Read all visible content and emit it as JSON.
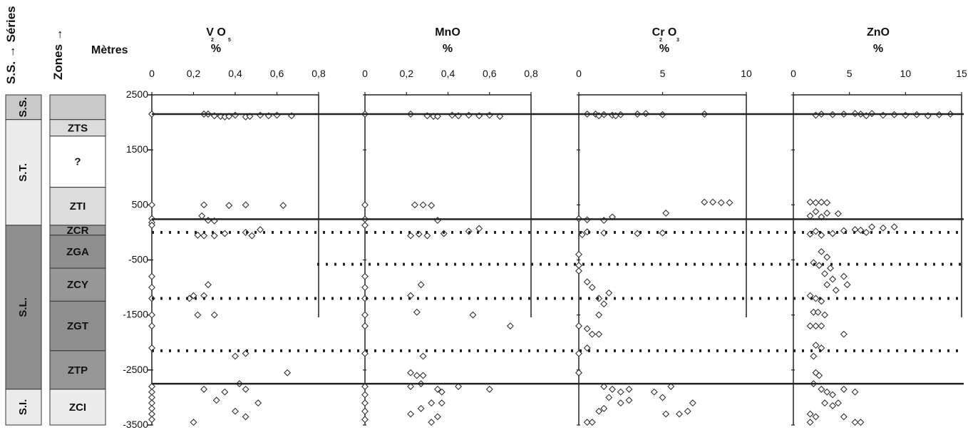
{
  "header": {
    "series_title": "S.S. → Séries",
    "zones_title": "Zones →",
    "metres_label": "Mètres"
  },
  "series_column": [
    {
      "label": "S.S.",
      "from": 2500,
      "to": 2050,
      "fill": "#c9c9c9"
    },
    {
      "label": "S.T.",
      "from": 2050,
      "to": 130,
      "fill": "#ececec"
    },
    {
      "label": "S.L.",
      "from": 130,
      "to": -2850,
      "fill": "#8f8f8f"
    },
    {
      "label": "S.I.",
      "from": -2850,
      "to": -3500,
      "fill": "#ececec"
    }
  ],
  "zones_column": [
    {
      "label": "",
      "from": 2500,
      "to": 2050,
      "fill": "#c9c9c9"
    },
    {
      "label": "ZTS",
      "from": 2050,
      "to": 1750,
      "fill": "#dcdcdc"
    },
    {
      "label": "?",
      "from": 1750,
      "to": 820,
      "fill": "#ffffff"
    },
    {
      "label": "ZTI",
      "from": 820,
      "to": 130,
      "fill": "#dcdcdc"
    },
    {
      "label": "ZCR",
      "from": 130,
      "to": -50,
      "fill": "#9a9a9a"
    },
    {
      "label": "ZGA",
      "from": -50,
      "to": -650,
      "fill": "#8f8f8f"
    },
    {
      "label": "ZCY",
      "from": -650,
      "to": -1250,
      "fill": "#979797"
    },
    {
      "label": "ZGT",
      "from": -1250,
      "to": -2150,
      "fill": "#8f8f8f"
    },
    {
      "label": "ZTP",
      "from": -2150,
      "to": -2850,
      "fill": "#979797"
    },
    {
      "label": "ZCI",
      "from": -2850,
      "to": -3500,
      "fill": "#ececec"
    }
  ],
  "colors": {
    "axis": "#222222",
    "marker": "#333333",
    "dotted": "#222222"
  },
  "chart_data": {
    "type": "scatter",
    "y_axis": {
      "label": "Mètres",
      "range": [
        -3500,
        2500
      ],
      "ticks": [
        2500,
        1500,
        500,
        -500,
        -1500,
        -2500,
        -3500
      ],
      "tick_labels": [
        "2500",
        "1500",
        "500",
        "-500",
        "-1500",
        "-2500",
        "-3500"
      ]
    },
    "horizontal_lines": {
      "solid": [
        2150,
        240,
        -2750
      ],
      "dotted": [
        0,
        -580,
        -1200,
        -2150
      ]
    },
    "panels": [
      {
        "title_main": "V O",
        "title_sub1": "2",
        "title_sub2": "5",
        "unit": "%",
        "xlim": [
          0,
          0.8
        ],
        "ticks": [
          0,
          0.2,
          0.4,
          0.6,
          0.8
        ],
        "tick_labels": [
          "0",
          "0,2",
          "0,4",
          "0,6",
          "0,8"
        ],
        "points": [
          [
            0,
            2150
          ],
          [
            0.25,
            2150
          ],
          [
            0.27,
            2150
          ],
          [
            0.3,
            2120
          ],
          [
            0.33,
            2110
          ],
          [
            0.35,
            2100
          ],
          [
            0.37,
            2110
          ],
          [
            0.4,
            2130
          ],
          [
            0.45,
            2100
          ],
          [
            0.47,
            2110
          ],
          [
            0.52,
            2130
          ],
          [
            0.56,
            2120
          ],
          [
            0.6,
            2130
          ],
          [
            0.67,
            2120
          ],
          [
            0,
            500
          ],
          [
            0.25,
            500
          ],
          [
            0.37,
            490
          ],
          [
            0.45,
            500
          ],
          [
            0.63,
            490
          ],
          [
            0.24,
            300
          ],
          [
            0.27,
            220
          ],
          [
            0.3,
            210
          ],
          [
            0,
            250
          ],
          [
            0,
            180
          ],
          [
            0,
            130
          ],
          [
            0.22,
            -50
          ],
          [
            0.25,
            -60
          ],
          [
            0.3,
            -60
          ],
          [
            0.35,
            -20
          ],
          [
            0.45,
            0
          ],
          [
            0.48,
            -60
          ],
          [
            0.52,
            50
          ],
          [
            0,
            -800
          ],
          [
            0,
            -1000
          ],
          [
            0,
            -1200
          ],
          [
            0.2,
            -1150
          ],
          [
            0.25,
            -1150
          ],
          [
            0.27,
            -950
          ],
          [
            0.18,
            -1200
          ],
          [
            0.22,
            -1500
          ],
          [
            0.3,
            -1500
          ],
          [
            0,
            -1500
          ],
          [
            0,
            -1700
          ],
          [
            0.4,
            -2250
          ],
          [
            0.45,
            -2200
          ],
          [
            0,
            -2100
          ],
          [
            0.65,
            -2550
          ],
          [
            0,
            -2800
          ],
          [
            0,
            -2900
          ],
          [
            0,
            -3000
          ],
          [
            0,
            -3100
          ],
          [
            0,
            -3200
          ],
          [
            0,
            -3300
          ],
          [
            0,
            -3400
          ],
          [
            0.25,
            -2850
          ],
          [
            0.35,
            -2900
          ],
          [
            0.42,
            -2750
          ],
          [
            0.45,
            -2850
          ],
          [
            0.31,
            -3050
          ],
          [
            0.4,
            -3250
          ],
          [
            0.45,
            -3350
          ],
          [
            0.51,
            -3100
          ],
          [
            0.2,
            -3450
          ]
        ]
      },
      {
        "title_main": "MnO",
        "title_sub1": "",
        "title_sub2": "",
        "unit": "%",
        "xlim": [
          0,
          0.8
        ],
        "ticks": [
          0,
          0.2,
          0.4,
          0.6,
          0.8
        ],
        "tick_labels": [
          "0",
          "0,2",
          "0,4",
          "0,6",
          "0,8"
        ],
        "points": [
          [
            0,
            2150
          ],
          [
            0.22,
            2150
          ],
          [
            0.3,
            2120
          ],
          [
            0.33,
            2110
          ],
          [
            0.35,
            2110
          ],
          [
            0.42,
            2130
          ],
          [
            0.45,
            2120
          ],
          [
            0.5,
            2130
          ],
          [
            0.55,
            2120
          ],
          [
            0.6,
            2130
          ],
          [
            0.65,
            2110
          ],
          [
            0,
            500
          ],
          [
            0.24,
            500
          ],
          [
            0.28,
            500
          ],
          [
            0.32,
            490
          ],
          [
            0,
            240
          ],
          [
            0,
            130
          ],
          [
            0.35,
            220
          ],
          [
            0.22,
            -60
          ],
          [
            0.26,
            -30
          ],
          [
            0.3,
            -60
          ],
          [
            0.38,
            -20
          ],
          [
            0.5,
            20
          ],
          [
            0.55,
            70
          ],
          [
            0,
            -800
          ],
          [
            0,
            -1000
          ],
          [
            0,
            -1200
          ],
          [
            0.22,
            -1150
          ],
          [
            0.27,
            -950
          ],
          [
            0.25,
            -1450
          ],
          [
            0.52,
            -1500
          ],
          [
            0,
            -1500
          ],
          [
            0,
            -1700
          ],
          [
            0.7,
            -1700
          ],
          [
            0,
            -2200
          ],
          [
            0.28,
            -2250
          ],
          [
            0.22,
            -2550
          ],
          [
            0.25,
            -2600
          ],
          [
            0.28,
            -2600
          ],
          [
            0.22,
            -2800
          ],
          [
            0.27,
            -2750
          ],
          [
            0.35,
            -2850
          ],
          [
            0.37,
            -2900
          ],
          [
            0.32,
            -3100
          ],
          [
            0.37,
            -3100
          ],
          [
            0.27,
            -3200
          ],
          [
            0.45,
            -2800
          ],
          [
            0.6,
            -2850
          ],
          [
            0.22,
            -3300
          ],
          [
            0.35,
            -3350
          ],
          [
            0.32,
            -3450
          ],
          [
            0,
            -2800
          ],
          [
            0,
            -2950
          ],
          [
            0,
            -3100
          ],
          [
            0,
            -3250
          ],
          [
            0,
            -3400
          ]
        ]
      },
      {
        "title_main": "Cr O",
        "title_sub1": "2",
        "title_sub2": "3",
        "unit": "%",
        "xlim": [
          0,
          10
        ],
        "ticks": [
          0,
          5,
          10
        ],
        "tick_labels": [
          "0",
          "5",
          "10"
        ],
        "points": [
          [
            0.5,
            2150
          ],
          [
            1,
            2150
          ],
          [
            1.5,
            2140
          ],
          [
            2,
            2130
          ],
          [
            2.5,
            2140
          ],
          [
            3.5,
            2150
          ],
          [
            4,
            2160
          ],
          [
            5,
            2140
          ],
          [
            7.5,
            2150
          ],
          [
            1.2,
            2120
          ],
          [
            2.2,
            2120
          ],
          [
            0,
            250
          ],
          [
            0.5,
            230
          ],
          [
            1.5,
            220
          ],
          [
            2,
            280
          ],
          [
            5.2,
            350
          ],
          [
            7.5,
            550
          ],
          [
            8,
            550
          ],
          [
            8.5,
            540
          ],
          [
            9,
            540
          ],
          [
            0.2,
            -40
          ],
          [
            0.5,
            10
          ],
          [
            1.5,
            -10
          ],
          [
            3.5,
            -20
          ],
          [
            5,
            -10
          ],
          [
            0,
            -400
          ],
          [
            0,
            -600
          ],
          [
            0,
            -700
          ],
          [
            0.5,
            -900
          ],
          [
            0.8,
            -1000
          ],
          [
            1.2,
            -1200
          ],
          [
            1.5,
            -1300
          ],
          [
            1.8,
            -1100
          ],
          [
            1.2,
            -1500
          ],
          [
            0,
            -1700
          ],
          [
            0.5,
            -1750
          ],
          [
            0.8,
            -1850
          ],
          [
            1.2,
            -1850
          ],
          [
            0.5,
            -2100
          ],
          [
            0,
            -2200
          ],
          [
            0,
            -2550
          ],
          [
            1.5,
            -2800
          ],
          [
            2,
            -2850
          ],
          [
            2.5,
            -2900
          ],
          [
            3,
            -2850
          ],
          [
            1.8,
            -3000
          ],
          [
            2.5,
            -3100
          ],
          [
            1.5,
            -3200
          ],
          [
            1.2,
            -3250
          ],
          [
            3,
            -3050
          ],
          [
            4.5,
            -2900
          ],
          [
            5.5,
            -2800
          ],
          [
            5,
            -3000
          ],
          [
            5.2,
            -3300
          ],
          [
            6,
            -3300
          ],
          [
            6.5,
            -3250
          ],
          [
            6.8,
            -3100
          ],
          [
            0.5,
            -3450
          ],
          [
            0.8,
            -3450
          ]
        ]
      },
      {
        "title_main": "ZnO",
        "title_sub1": "",
        "title_sub2": "",
        "unit": "%",
        "xlim": [
          0,
          15
        ],
        "ticks": [
          0,
          5,
          10,
          15
        ],
        "tick_labels": [
          "0",
          "5",
          "10",
          "15"
        ],
        "points": [
          [
            2.5,
            2150
          ],
          [
            3.5,
            2140
          ],
          [
            4.5,
            2150
          ],
          [
            5.5,
            2160
          ],
          [
            6,
            2150
          ],
          [
            7,
            2160
          ],
          [
            8,
            2130
          ],
          [
            9,
            2140
          ],
          [
            10,
            2130
          ],
          [
            11,
            2140
          ],
          [
            12,
            2120
          ],
          [
            13,
            2140
          ],
          [
            14,
            2150
          ],
          [
            2,
            2130
          ],
          [
            6.5,
            2120
          ],
          [
            1.5,
            550
          ],
          [
            2,
            540
          ],
          [
            2.5,
            550
          ],
          [
            3,
            540
          ],
          [
            2,
            380
          ],
          [
            3,
            350
          ],
          [
            4,
            340
          ],
          [
            1.5,
            300
          ],
          [
            2.5,
            280
          ],
          [
            1.5,
            -30
          ],
          [
            2.5,
            -50
          ],
          [
            3.5,
            -20
          ],
          [
            4.5,
            30
          ],
          [
            5.5,
            50
          ],
          [
            6,
            40
          ],
          [
            7,
            100
          ],
          [
            8,
            80
          ],
          [
            9,
            100
          ],
          [
            2,
            20
          ],
          [
            6.5,
            0
          ],
          [
            2.5,
            -350
          ],
          [
            3,
            -450
          ],
          [
            1.8,
            -550
          ],
          [
            2.3,
            -600
          ],
          [
            3.3,
            -650
          ],
          [
            2.8,
            -750
          ],
          [
            3.5,
            -850
          ],
          [
            4.5,
            -800
          ],
          [
            4.8,
            -950
          ],
          [
            3,
            -950
          ],
          [
            3.8,
            -1050
          ],
          [
            1.5,
            -1150
          ],
          [
            2,
            -1200
          ],
          [
            2.5,
            -1250
          ],
          [
            1.8,
            -1450
          ],
          [
            2.2,
            -1450
          ],
          [
            2.8,
            -1500
          ],
          [
            1.5,
            -1700
          ],
          [
            2,
            -1700
          ],
          [
            2.5,
            -1700
          ],
          [
            4.5,
            -1850
          ],
          [
            2,
            -2050
          ],
          [
            2.5,
            -2100
          ],
          [
            1.8,
            -2250
          ],
          [
            2,
            -2550
          ],
          [
            2.3,
            -2600
          ],
          [
            1.8,
            -2750
          ],
          [
            2.5,
            -2850
          ],
          [
            3,
            -2900
          ],
          [
            3.5,
            -2950
          ],
          [
            4.5,
            -2850
          ],
          [
            5.5,
            -2900
          ],
          [
            2.8,
            -3100
          ],
          [
            3.5,
            -3150
          ],
          [
            4,
            -3100
          ],
          [
            1.5,
            -3300
          ],
          [
            2,
            -3350
          ],
          [
            4.5,
            -3350
          ],
          [
            5.5,
            -3450
          ],
          [
            6,
            -3450
          ],
          [
            1.5,
            -3450
          ]
        ]
      }
    ]
  }
}
